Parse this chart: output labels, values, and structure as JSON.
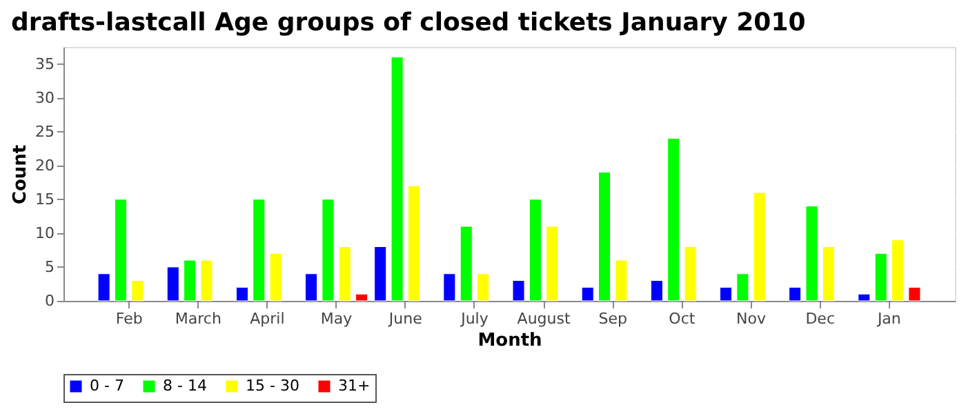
{
  "chart_data": {
    "type": "bar",
    "title": "drafts-lastcall Age groups of closed tickets January 2010",
    "xlabel": "Month",
    "ylabel": "Count",
    "categories": [
      "Feb",
      "March",
      "April",
      "May",
      "June",
      "July",
      "August",
      "Sep",
      "Oct",
      "Nov",
      "Dec",
      "Jan"
    ],
    "series": [
      {
        "name": "0 - 7",
        "color": "#0000ff",
        "values": [
          4,
          5,
          2,
          4,
          8,
          4,
          3,
          2,
          3,
          2,
          2,
          1
        ]
      },
      {
        "name": "8 - 14",
        "color": "#00ff00",
        "values": [
          15,
          6,
          15,
          15,
          36,
          11,
          15,
          19,
          24,
          4,
          14,
          7
        ]
      },
      {
        "name": "15 - 30",
        "color": "#ffff00",
        "values": [
          3,
          6,
          7,
          8,
          17,
          4,
          11,
          6,
          8,
          16,
          8,
          9
        ]
      },
      {
        "name": "31+",
        "color": "#ff0000",
        "values": [
          null,
          null,
          null,
          1,
          null,
          null,
          null,
          null,
          null,
          null,
          null,
          2
        ]
      }
    ],
    "ylim": [
      0,
      37.5
    ],
    "yticks": [
      0,
      5,
      10,
      15,
      20,
      25,
      30,
      35
    ],
    "grid": "y",
    "legend": "bottom"
  }
}
